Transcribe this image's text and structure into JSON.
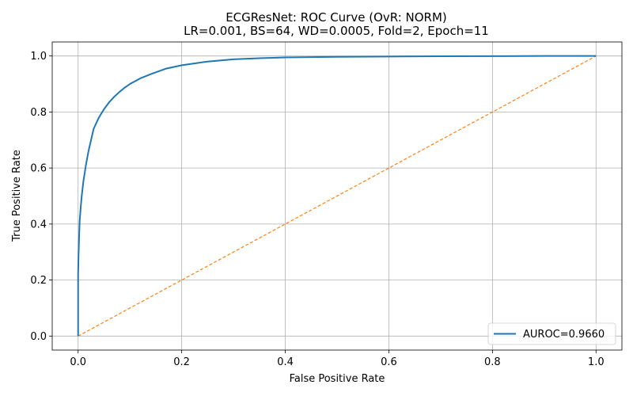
{
  "chart_data": {
    "type": "line",
    "title": "ECGResNet: ROC Curve (OvR: NORM)",
    "subtitle": "LR=0.001, BS=64, WD=0.0005, Fold=2, Epoch=11",
    "xlabel": "False Positive Rate",
    "ylabel": "True Positive Rate",
    "xlim": [
      -0.05,
      1.05
    ],
    "ylim": [
      -0.05,
      1.05
    ],
    "xticks": [
      0.0,
      0.2,
      0.4,
      0.6,
      0.8,
      1.0
    ],
    "yticks": [
      0.0,
      0.2,
      0.4,
      0.6,
      0.8,
      1.0
    ],
    "xtick_labels": [
      "0.0",
      "0.2",
      "0.4",
      "0.6",
      "0.8",
      "1.0"
    ],
    "ytick_labels": [
      "0.0",
      "0.2",
      "0.4",
      "0.6",
      "0.8",
      "1.0"
    ],
    "grid": true,
    "legend_position": "lower-right",
    "series": [
      {
        "name": "AUROC=0.9660",
        "color": "#1f77b4",
        "style": "solid",
        "x": [
          0.0,
          0.0,
          0.001,
          0.002,
          0.003,
          0.005,
          0.007,
          0.01,
          0.015,
          0.02,
          0.025,
          0.03,
          0.04,
          0.05,
          0.06,
          0.07,
          0.08,
          0.09,
          0.1,
          0.12,
          0.14,
          0.17,
          0.2,
          0.25,
          0.3,
          0.35,
          0.4,
          0.5,
          0.6,
          0.7,
          0.8,
          0.9,
          1.0
        ],
        "y": [
          0.0,
          0.22,
          0.3,
          0.36,
          0.41,
          0.46,
          0.5,
          0.55,
          0.61,
          0.66,
          0.7,
          0.74,
          0.78,
          0.81,
          0.835,
          0.855,
          0.872,
          0.887,
          0.9,
          0.92,
          0.935,
          0.955,
          0.967,
          0.98,
          0.988,
          0.992,
          0.995,
          0.997,
          0.998,
          0.999,
          0.9995,
          1.0,
          1.0
        ]
      },
      {
        "name": "",
        "color": "#ff7f0e",
        "style": "dashed",
        "x": [
          0.0,
          1.0
        ],
        "y": [
          0.0,
          1.0
        ]
      }
    ]
  }
}
